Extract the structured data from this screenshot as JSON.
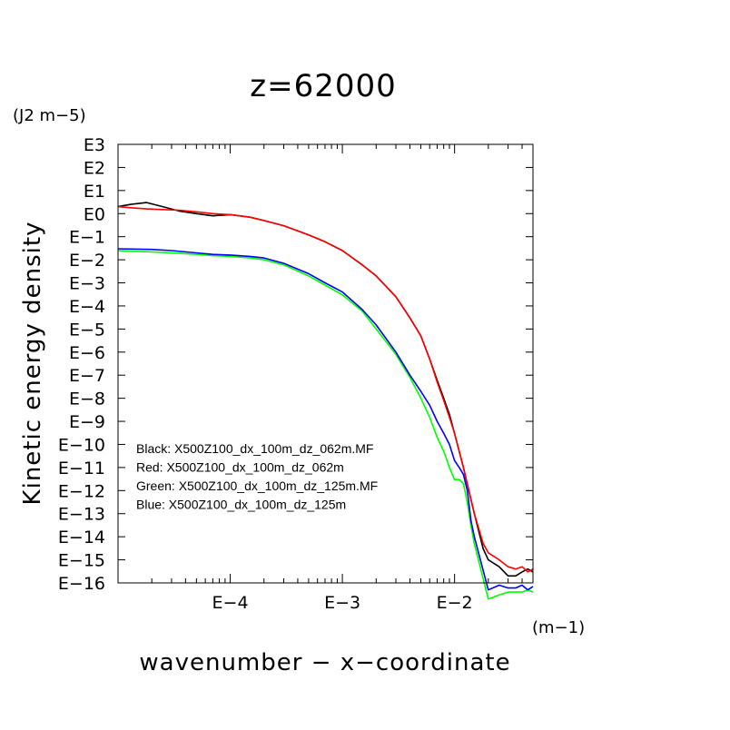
{
  "chart_data": {
    "type": "line",
    "title": "z=62000",
    "xlabel": "wavenumber − x−coordinate",
    "ylabel": "Kinetic energy density",
    "x_unit": "(m−1)",
    "y_unit": "(J2 m−5)",
    "x_scale": "log",
    "y_scale": "log",
    "xlim": [
      1e-05,
      0.05
    ],
    "ylim": [
      1e-16,
      1000
    ],
    "x_tick_values": [
      0.0001,
      0.001,
      0.01
    ],
    "x_tick_labels": [
      "E−4",
      "E−3",
      "E−2"
    ],
    "y_tick_values": [
      1000,
      100,
      10,
      1,
      0.1,
      0.01,
      0.001,
      0.0001,
      1e-05,
      1e-06,
      1e-07,
      1e-08,
      1e-09,
      1e-10,
      1e-11,
      1e-12,
      1e-13,
      1e-14,
      1e-15,
      1e-16
    ],
    "y_tick_labels": [
      "E3",
      "E2",
      "E1",
      "E0",
      "E−1",
      "E−2",
      "E−3",
      "E−4",
      "E−5",
      "E−6",
      "E−7",
      "E−8",
      "E−9",
      "E−10",
      "E−11",
      "E−12",
      "E−13",
      "E−14",
      "E−15",
      "E−16"
    ],
    "grid": false,
    "legend_position": "lower-left",
    "series": [
      {
        "name": "Black: X500Z100_dx_100m_dz_062m.MF",
        "color": "#000000",
        "x": [
          1e-05,
          1.3e-05,
          1.8e-05,
          2.5e-05,
          3.5e-05,
          5e-05,
          7e-05,
          0.0001,
          0.00015,
          0.0002,
          0.0003,
          0.0005,
          0.0007,
          0.001,
          0.0015,
          0.002,
          0.003,
          0.004,
          0.005,
          0.006,
          0.007,
          0.008,
          0.009,
          0.01,
          0.012,
          0.015,
          0.018,
          0.02,
          0.025,
          0.03,
          0.035,
          0.04,
          0.045,
          0.05
        ],
        "y": [
          2.0,
          2.5,
          3.0,
          2.0,
          1.3,
          1.0,
          0.8,
          0.9,
          0.7,
          0.5,
          0.3,
          0.12,
          0.06,
          0.025,
          0.006,
          0.002,
          0.00025,
          3e-05,
          5e-06,
          5e-07,
          6e-08,
          1e-08,
          2e-09,
          3e-10,
          1e-11,
          1e-13,
          3e-15,
          1e-15,
          5e-16,
          2e-16,
          2e-16,
          3e-16,
          4e-16,
          3e-16
        ]
      },
      {
        "name": "Red: X500Z100_dx_100m_dz_062m",
        "color": "#ff0000",
        "x": [
          1e-05,
          1.3e-05,
          1.8e-05,
          2.5e-05,
          3.5e-05,
          5e-05,
          7e-05,
          0.0001,
          0.00015,
          0.0002,
          0.0003,
          0.0005,
          0.0007,
          0.001,
          0.0015,
          0.002,
          0.003,
          0.004,
          0.005,
          0.006,
          0.007,
          0.008,
          0.009,
          0.01,
          0.012,
          0.015,
          0.018,
          0.02,
          0.025,
          0.03,
          0.035,
          0.04,
          0.045,
          0.05
        ],
        "y": [
          2.0,
          1.8,
          1.6,
          1.5,
          1.4,
          1.2,
          1.0,
          0.9,
          0.7,
          0.5,
          0.3,
          0.12,
          0.06,
          0.025,
          0.006,
          0.002,
          0.00025,
          3e-05,
          5e-06,
          5e-07,
          5e-08,
          8e-09,
          1.5e-09,
          3e-10,
          1e-11,
          1e-13,
          5e-15,
          2e-15,
          1e-15,
          5e-16,
          4e-16,
          5e-16,
          3e-16,
          4e-16
        ]
      },
      {
        "name": "Green: X500Z100_dx_100m_dz_125m.MF",
        "color": "#00ff00",
        "x": [
          1e-05,
          1.5e-05,
          2e-05,
          3e-05,
          5e-05,
          7e-05,
          0.0001,
          0.00015,
          0.0002,
          0.0003,
          0.0005,
          0.0007,
          0.001,
          0.0015,
          0.002,
          0.003,
          0.004,
          0.005,
          0.006,
          0.007,
          0.008,
          0.009,
          0.01,
          0.011,
          0.012,
          0.013,
          0.014,
          0.015,
          0.02,
          0.025,
          0.03,
          0.035,
          0.04,
          0.045,
          0.05
        ],
        "y": [
          0.025,
          0.023,
          0.022,
          0.02,
          0.017,
          0.015,
          0.014,
          0.012,
          0.01,
          0.006,
          0.002,
          0.0008,
          0.0003,
          6e-05,
          1e-05,
          8e-07,
          8e-08,
          1e-08,
          1.5e-09,
          2e-10,
          5e-11,
          1e-11,
          3e-12,
          3e-12,
          2e-12,
          3e-13,
          3e-14,
          5e-15,
          2e-17,
          3e-17,
          4e-17,
          4e-17,
          4e-17,
          5e-17,
          4e-17
        ]
      },
      {
        "name": "Blue: X500Z100_dx_100m_dz_125m",
        "color": "#0000ff",
        "x": [
          1e-05,
          1.5e-05,
          2e-05,
          3e-05,
          5e-05,
          7e-05,
          0.0001,
          0.00015,
          0.0002,
          0.0003,
          0.0005,
          0.0007,
          0.001,
          0.0015,
          0.002,
          0.003,
          0.004,
          0.005,
          0.006,
          0.007,
          0.008,
          0.009,
          0.01,
          0.011,
          0.012,
          0.013,
          0.014,
          0.015,
          0.02,
          0.025,
          0.03,
          0.035,
          0.04,
          0.045,
          0.05
        ],
        "y": [
          0.03,
          0.029,
          0.028,
          0.025,
          0.02,
          0.017,
          0.016,
          0.014,
          0.012,
          0.007,
          0.0025,
          0.001,
          0.0004,
          7e-05,
          1.5e-05,
          1e-06,
          1e-07,
          2e-08,
          5e-09,
          1e-09,
          3e-10,
          1e-10,
          2e-11,
          1e-11,
          5e-12,
          1e-12,
          5e-14,
          1e-14,
          5e-17,
          8e-17,
          6e-17,
          6e-17,
          8e-17,
          5e-17,
          7e-17
        ]
      }
    ]
  }
}
